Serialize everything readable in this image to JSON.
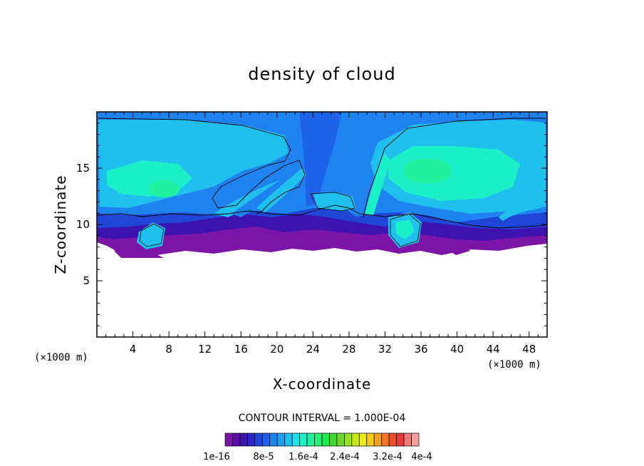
{
  "chart_data": {
    "type": "contour",
    "title": "density of cloud",
    "xlabel": "X-coordinate",
    "ylabel": "Z-coordinate",
    "x_unit": "(×1000 m)",
    "z_unit": "(×1000 m)",
    "xlim": [
      0,
      50
    ],
    "ylim": [
      0,
      20
    ],
    "x_ticks": [
      "4",
      "8",
      "12",
      "16",
      "20",
      "24",
      "28",
      "32",
      "36",
      "40",
      "44",
      "48"
    ],
    "y_ticks": [
      "5",
      "10",
      "15"
    ],
    "contour_interval_text": "CONTOUR INTERVAL = 1.000E-04",
    "colorbar": {
      "levels": 25,
      "colors": [
        "#7d14a8",
        "#5a0fa6",
        "#3c12b0",
        "#2a26c4",
        "#2046d8",
        "#1d62e8",
        "#1e82f0",
        "#22a0f2",
        "#20c0ee",
        "#1ee0e6",
        "#1cf0c8",
        "#22f2a0",
        "#24ee78",
        "#26e650",
        "#3ed830",
        "#6ad826",
        "#98e020",
        "#c8e81c",
        "#ece81c",
        "#f2c81e",
        "#f2a020",
        "#f07822",
        "#ec5028",
        "#e83838",
        "#f07878",
        "#f4a0a0"
      ],
      "labels": [
        "1e-16",
        "8e-5",
        "1.6e-4",
        "2.4e-4",
        "3.2e-4",
        "4e-4"
      ]
    },
    "field_colors": {
      "outer": "#1e82f0",
      "mid": "#20c0ee",
      "inner": "#1cf0c8",
      "core": "#22f2a0",
      "base_deep": "#7d14a8",
      "base_mid": "#3c12b0",
      "base_light": "#2046d8",
      "plume": "#1d62e8",
      "empty": "#ffffff"
    }
  }
}
